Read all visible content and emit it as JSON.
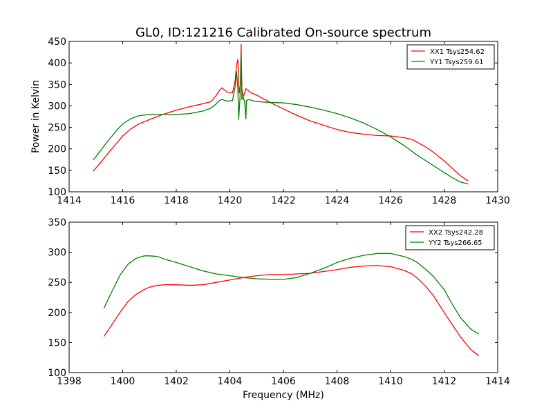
{
  "title": "GL0, ID:121216 Calibrated On-source spectrum",
  "colors": {
    "red": "#ff0000",
    "green": "#008000"
  },
  "chart_data": [
    {
      "type": "line",
      "ylabel": "Power in Kelvin",
      "xlabel": "",
      "xlim": [
        1414,
        1430
      ],
      "ylim": [
        100,
        450
      ],
      "xticks": [
        1414,
        1416,
        1418,
        1420,
        1422,
        1424,
        1426,
        1428,
        1430
      ],
      "yticks": [
        100,
        150,
        200,
        250,
        300,
        350,
        400,
        450
      ],
      "legend_position": "top-right",
      "series": [
        {
          "name": "XX1 Tsys254.62",
          "color": "#ff0000",
          "x": [
            1414.9,
            1415.2,
            1415.5,
            1415.8,
            1416.0,
            1416.3,
            1416.6,
            1417.0,
            1417.5,
            1418.0,
            1418.5,
            1419.0,
            1419.3,
            1419.5,
            1419.6,
            1419.7,
            1419.9,
            1420.1,
            1420.2,
            1420.25,
            1420.3,
            1420.35,
            1420.4,
            1420.42,
            1420.45,
            1420.5,
            1420.55,
            1420.6,
            1420.7,
            1420.8,
            1421.0,
            1421.3,
            1421.6,
            1422.0,
            1422.5,
            1423.0,
            1423.5,
            1424.0,
            1424.5,
            1425.0,
            1425.5,
            1426.0,
            1426.5,
            1426.8,
            1427.0,
            1427.3,
            1427.6,
            1428.0,
            1428.3,
            1428.6,
            1428.9
          ],
          "y": [
            148,
            170,
            193,
            215,
            230,
            246,
            258,
            268,
            280,
            290,
            298,
            305,
            310,
            325,
            335,
            342,
            332,
            330,
            360,
            395,
            408,
            330,
            350,
            443,
            340,
            320,
            330,
            340,
            335,
            330,
            325,
            315,
            305,
            293,
            278,
            265,
            255,
            245,
            238,
            234,
            231,
            230,
            226,
            222,
            215,
            205,
            192,
            172,
            155,
            138,
            125
          ]
        },
        {
          "name": "YY1 Tsys259.61",
          "color": "#008000",
          "x": [
            1414.9,
            1415.2,
            1415.5,
            1415.8,
            1416.0,
            1416.3,
            1416.6,
            1417.0,
            1417.5,
            1418.0,
            1418.5,
            1419.0,
            1419.3,
            1419.5,
            1419.6,
            1419.7,
            1419.9,
            1420.1,
            1420.2,
            1420.25,
            1420.3,
            1420.33,
            1420.38,
            1420.42,
            1420.45,
            1420.5,
            1420.55,
            1420.6,
            1420.62,
            1420.7,
            1420.8,
            1421.0,
            1421.5,
            1422.0,
            1422.5,
            1423.0,
            1423.5,
            1424.0,
            1424.5,
            1425.0,
            1425.5,
            1426.0,
            1426.5,
            1427.0,
            1427.5,
            1428.0,
            1428.3,
            1428.6,
            1428.9
          ],
          "y": [
            174,
            198,
            222,
            245,
            258,
            270,
            277,
            280,
            280,
            280,
            282,
            288,
            295,
            305,
            312,
            315,
            311,
            312,
            345,
            380,
            340,
            268,
            320,
            418,
            315,
            320,
            310,
            270,
            312,
            315,
            313,
            310,
            308,
            307,
            303,
            297,
            290,
            282,
            272,
            260,
            245,
            228,
            208,
            185,
            165,
            145,
            133,
            123,
            118
          ]
        }
      ]
    },
    {
      "type": "line",
      "ylabel": "",
      "xlabel": "Frequency (MHz)",
      "xlim": [
        1398,
        1414
      ],
      "ylim": [
        100,
        350
      ],
      "xticks": [
        1398,
        1400,
        1402,
        1404,
        1406,
        1408,
        1410,
        1412,
        1414
      ],
      "yticks": [
        100,
        150,
        200,
        250,
        300,
        350
      ],
      "legend_position": "top-right",
      "series": [
        {
          "name": "XX2 Tsys242.28",
          "color": "#ff0000",
          "x": [
            1399.3,
            1399.6,
            1399.9,
            1400.2,
            1400.5,
            1400.8,
            1401.0,
            1401.3,
            1401.6,
            1402.0,
            1402.5,
            1403.0,
            1403.5,
            1404.0,
            1404.5,
            1405.0,
            1405.5,
            1406.0,
            1406.5,
            1407.0,
            1407.5,
            1408.0,
            1408.5,
            1409.0,
            1409.5,
            1410.0,
            1410.5,
            1410.8,
            1411.0,
            1411.3,
            1411.6,
            1412.0,
            1412.3,
            1412.6,
            1413.0,
            1413.3
          ],
          "y": [
            160,
            180,
            200,
            218,
            230,
            238,
            242,
            245,
            246,
            246,
            245,
            246,
            250,
            254,
            258,
            261,
            263,
            263,
            264,
            265,
            268,
            271,
            275,
            277,
            278,
            276,
            270,
            264,
            257,
            244,
            228,
            200,
            180,
            160,
            138,
            128
          ]
        },
        {
          "name": "YY2 Tsys266.65",
          "color": "#008000",
          "x": [
            1399.3,
            1399.6,
            1399.9,
            1400.2,
            1400.5,
            1400.8,
            1401.0,
            1401.3,
            1401.6,
            1402.0,
            1402.5,
            1403.0,
            1403.5,
            1404.0,
            1404.5,
            1405.0,
            1405.5,
            1406.0,
            1406.5,
            1407.0,
            1407.5,
            1408.0,
            1408.5,
            1409.0,
            1409.5,
            1410.0,
            1410.5,
            1410.8,
            1411.0,
            1411.3,
            1411.6,
            1412.0,
            1412.3,
            1412.6,
            1413.0,
            1413.3
          ],
          "y": [
            207,
            235,
            262,
            280,
            290,
            294,
            294,
            293,
            288,
            283,
            276,
            269,
            264,
            261,
            258,
            256,
            255,
            255,
            258,
            265,
            273,
            283,
            290,
            295,
            298,
            298,
            293,
            288,
            283,
            272,
            260,
            238,
            214,
            192,
            172,
            164
          ]
        }
      ]
    }
  ]
}
